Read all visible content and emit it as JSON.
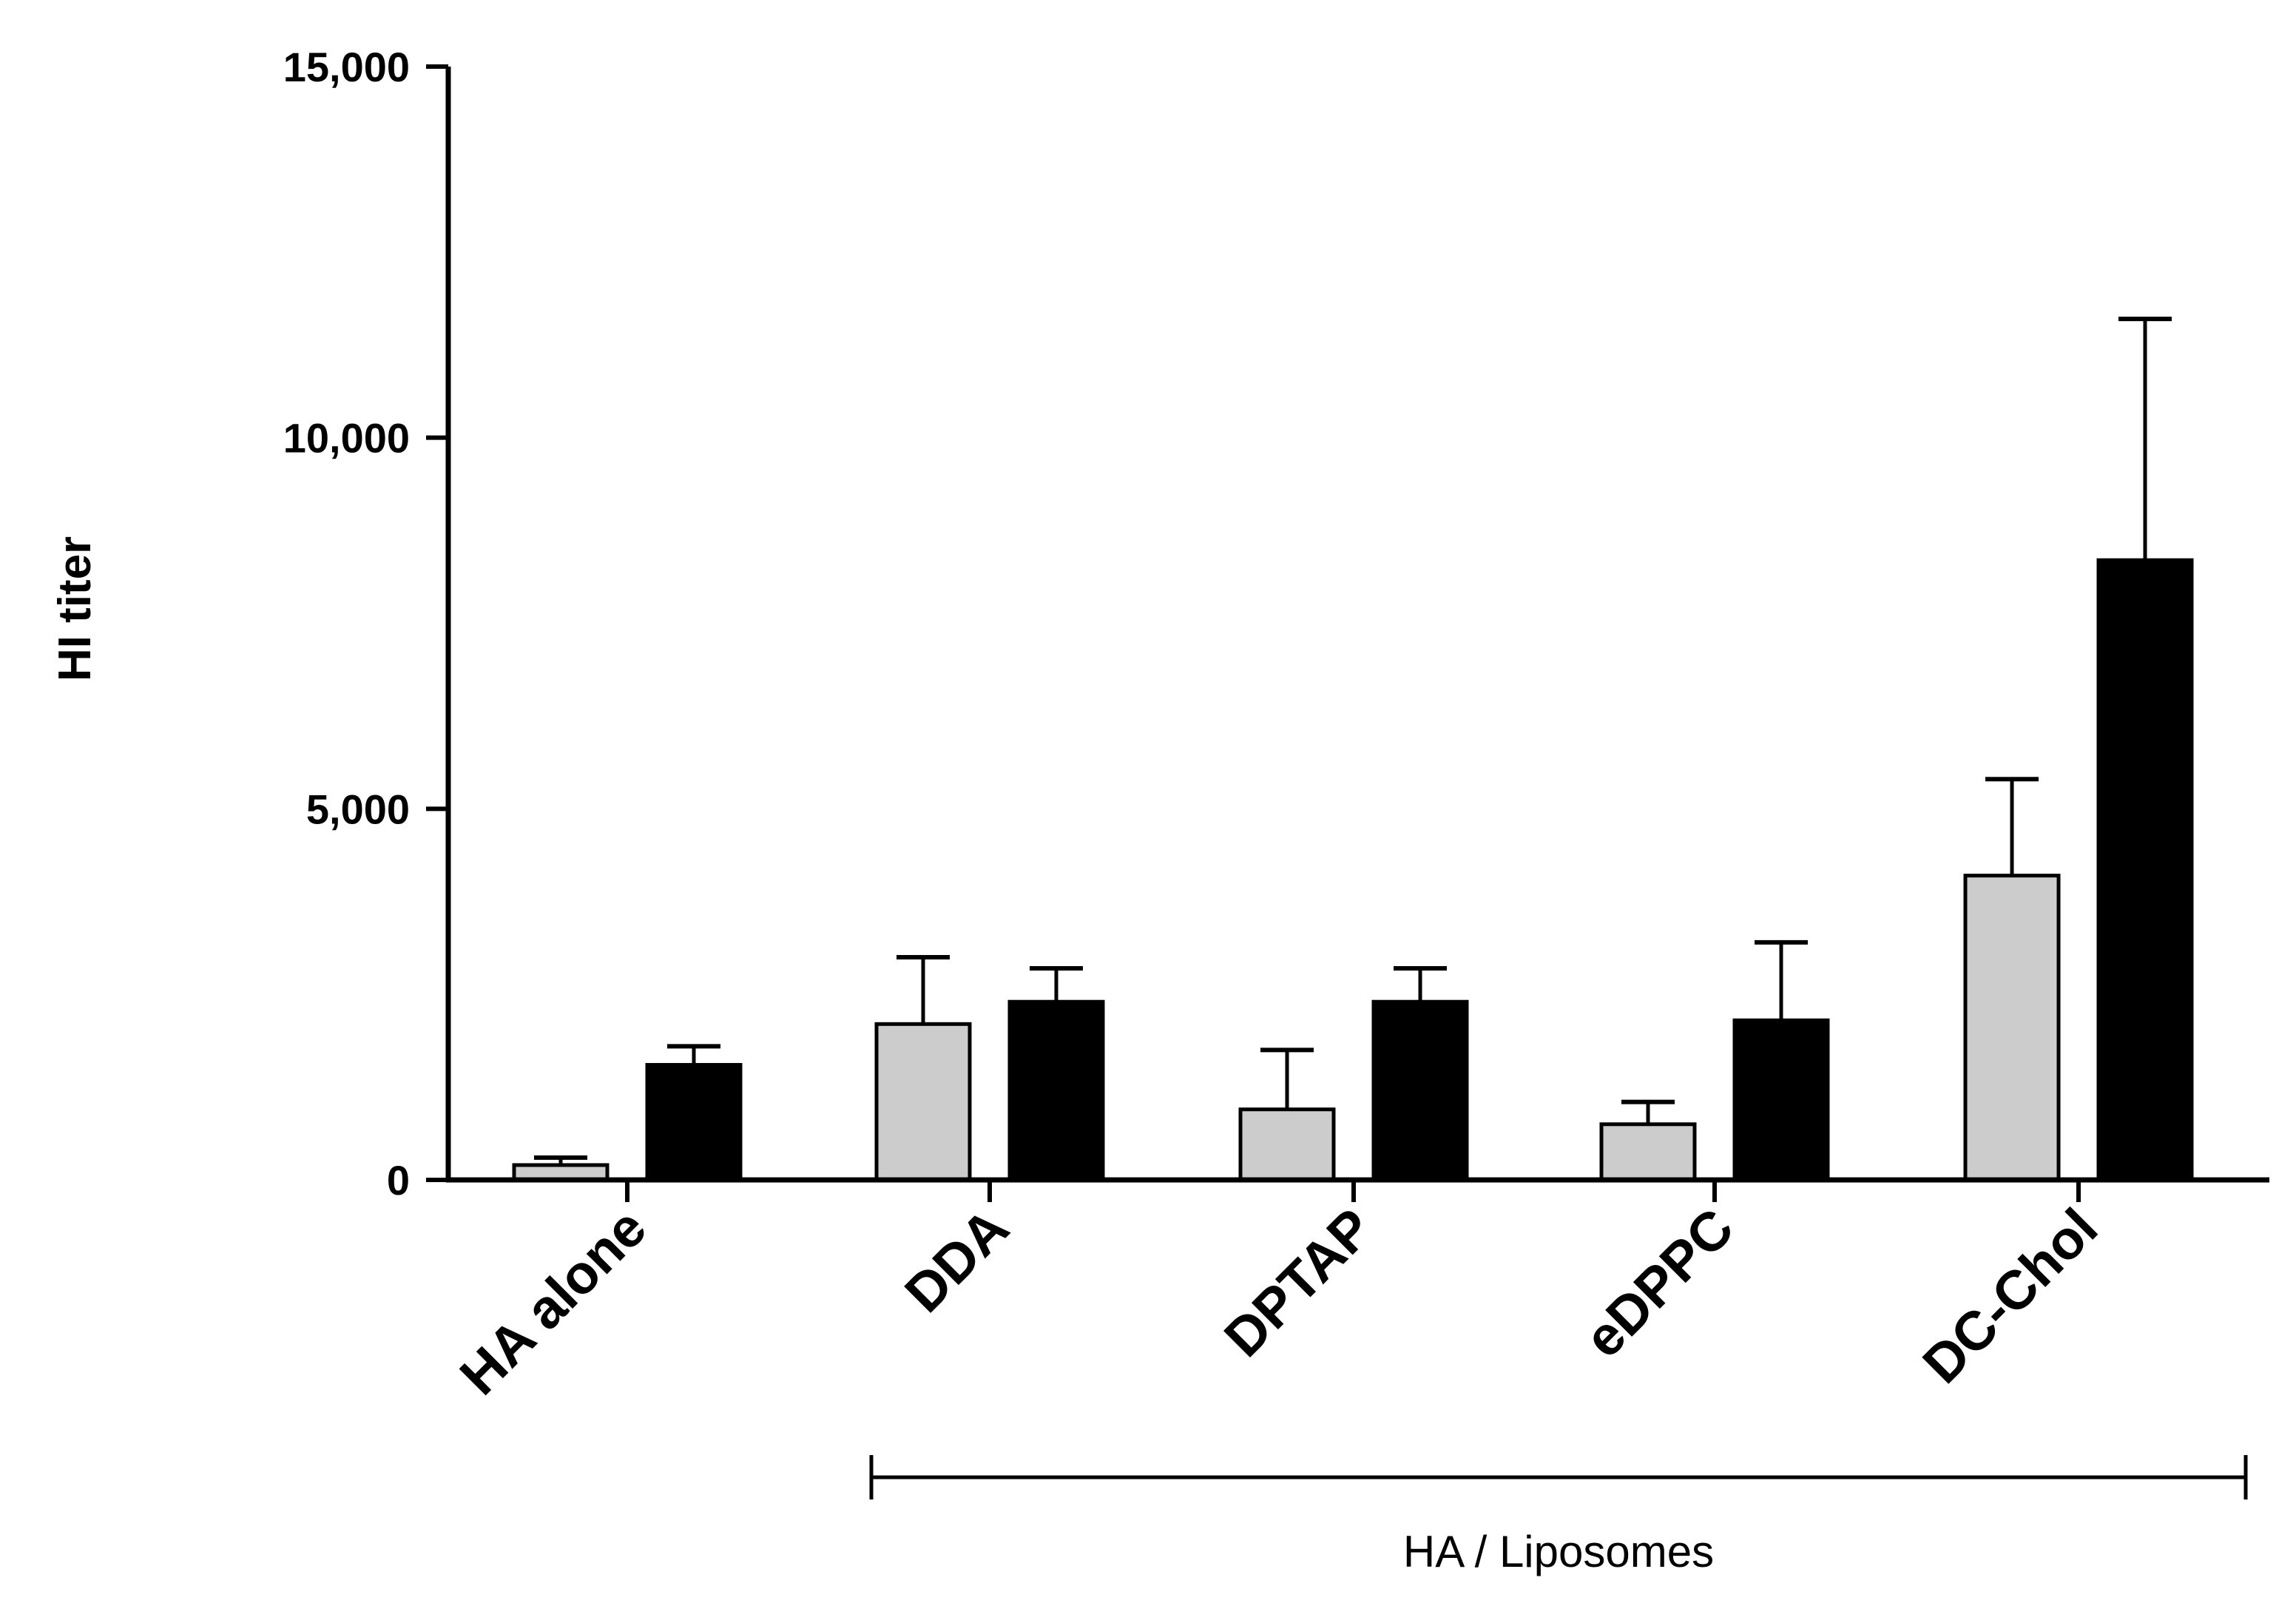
{
  "chart_data": {
    "type": "bar",
    "title": "",
    "xlabel": "",
    "ylabel": "HI titer",
    "ylim": [
      0,
      15000
    ],
    "yticks": [
      0,
      5000,
      10000,
      15000
    ],
    "ytick_labels": [
      "0",
      "5,000",
      "10,000",
      "15,000"
    ],
    "categories": [
      "HA alone",
      "DDA",
      "DPTAP",
      "eDPPC",
      "DC-Chol"
    ],
    "series": [
      {
        "color": "#cccccc",
        "values": [
          200,
          2100,
          950,
          750,
          4100
        ],
        "errors": [
          100,
          900,
          800,
          300,
          1300
        ]
      },
      {
        "color": "#000000",
        "values": [
          1550,
          2400,
          2400,
          2150,
          8350
        ],
        "errors": [
          250,
          450,
          450,
          1050,
          3250
        ]
      }
    ],
    "grid": false,
    "legend": "none",
    "group_annotation": {
      "label": "HA / Liposomes",
      "categories": [
        "DDA",
        "DPTAP",
        "eDPPC",
        "DC-Chol"
      ]
    }
  }
}
